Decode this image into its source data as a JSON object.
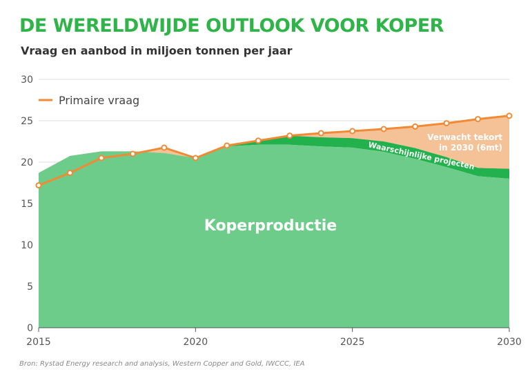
{
  "chart_data": {
    "type": "area",
    "title": "DE WERELDWIJDE OUTLOOK VOOR KOPER",
    "subtitle": "Vraag en aanbod in miljoen tonnen per jaar",
    "source": "Bron: Rystad Energy research and analysis, Western Copper and Gold, IWCCC, IEA",
    "x": [
      2015,
      2016,
      2017,
      2018,
      2019,
      2020,
      2021,
      2022,
      2023,
      2024,
      2025,
      2026,
      2027,
      2028,
      2029,
      2030
    ],
    "xticks": [
      2015,
      2020,
      2025,
      2030
    ],
    "yticks": [
      0,
      5,
      10,
      15,
      20,
      25,
      30
    ],
    "ylim": [
      0,
      30
    ],
    "grid": true,
    "legend_position": "top-left",
    "series": [
      {
        "name": "Primaire vraag",
        "type": "line",
        "color": "#f08a34",
        "values": [
          17.2,
          18.7,
          20.5,
          21.0,
          21.75,
          20.5,
          22.0,
          22.6,
          23.2,
          23.5,
          23.75,
          24.0,
          24.3,
          24.7,
          25.2,
          25.6
        ]
      },
      {
        "name": "Koperproductie",
        "type": "area",
        "color": "#6dcc8a",
        "values": [
          18.7,
          20.75,
          21.3,
          21.3,
          21.1,
          20.5,
          21.9,
          22.1,
          22.1,
          21.9,
          21.75,
          21.25,
          20.4,
          19.4,
          18.3,
          18.0
        ]
      },
      {
        "name": "Waarschijnlijke projecten",
        "type": "area",
        "color": "#22b14c",
        "values": [
          null,
          null,
          null,
          null,
          null,
          null,
          22.0,
          22.5,
          23.2,
          23.0,
          22.9,
          22.5,
          21.7,
          20.6,
          19.3,
          19.2
        ]
      }
    ],
    "annotations": {
      "production": "Koperproductie",
      "projects": "Waarschijnlijke projecten",
      "deficit_line1": "Verwacht tekort",
      "deficit_line2": "in 2030 (6mt)"
    },
    "deficit_color": "#f5c197"
  }
}
